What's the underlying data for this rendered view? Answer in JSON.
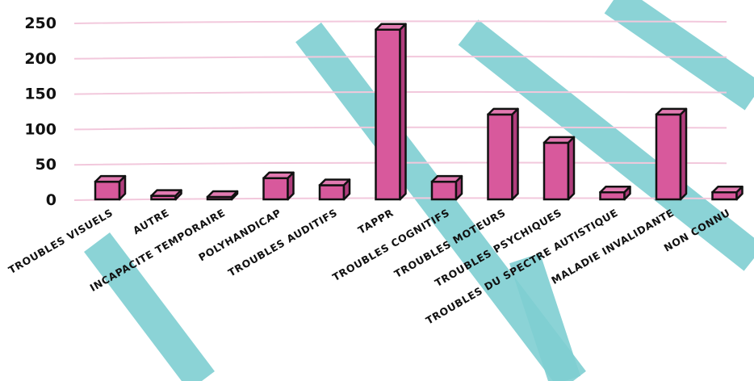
{
  "chart_data": {
    "type": "bar",
    "title": "",
    "xlabel": "",
    "ylabel": "",
    "ylim": [
      0,
      250
    ],
    "yticks": [
      0,
      50,
      100,
      150,
      200,
      250
    ],
    "grid": true,
    "legend": "none",
    "categories": [
      "TROUBLES VISUELS",
      "AUTRE",
      "INCAPACITE TEMPORAIRE",
      "POLYHANDICAP",
      "TROUBLES AUDITIFS",
      "TAPPR",
      "TROUBLES COGNITIFS",
      "TROUBLES MOTEURS",
      "TROUBLES PSYCHIQUES",
      "TROUBLES DU SPECTRE AUTISTIQUE",
      "MALADIE INVALIDANTE",
      "NON CONNU"
    ],
    "values": [
      25,
      5,
      2,
      30,
      20,
      240,
      25,
      120,
      80,
      10,
      120,
      10
    ]
  },
  "colors": {
    "bar": "#d8599c",
    "bar_top": "#e27ab1",
    "bar_side": "#b03d7c",
    "outline": "#111111",
    "grid": "#f2c8dc",
    "watermark": "#7fcfd2"
  }
}
